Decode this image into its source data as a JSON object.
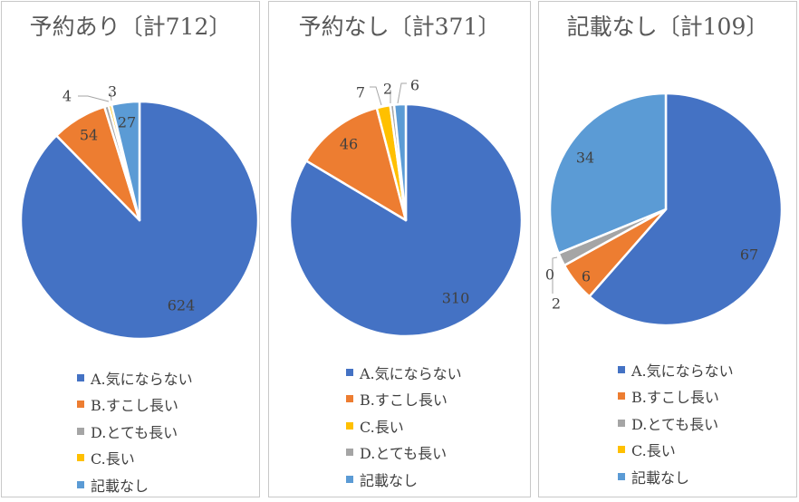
{
  "colors": {
    "A.気にならない": "#4472C4",
    "B.すこし長い": "#ED7D31",
    "C.長い": "#FFC000",
    "D.とても長い": "#A5A5A5",
    "記載なし": "#5B9BD5"
  },
  "chart_data": [
    {
      "type": "pie",
      "title": "予約あり〔計712〕",
      "slices": [
        {
          "label": "A.気にならない",
          "value": 624
        },
        {
          "label": "B.すこし長い",
          "value": 54
        },
        {
          "label": "D.とても長い",
          "value": 4
        },
        {
          "label": "C.長い",
          "value": 3
        },
        {
          "label": "記載なし",
          "value": 27
        }
      ],
      "legend": [
        "A.気にならない",
        "B.すこし長い",
        "D.とても長い",
        "C.長い",
        "記載なし"
      ],
      "legend_position": "bottom"
    },
    {
      "type": "pie",
      "title": "予約なし〔計371〕",
      "slices": [
        {
          "label": "A.気にならない",
          "value": 310
        },
        {
          "label": "B.すこし長い",
          "value": 46
        },
        {
          "label": "C.長い",
          "value": 7
        },
        {
          "label": "D.とても長い",
          "value": 2
        },
        {
          "label": "記載なし",
          "value": 6
        }
      ],
      "legend": [
        "A.気にならない",
        "B.すこし長い",
        "C.長い",
        "D.とても長い",
        "記載なし"
      ],
      "legend_position": "bottom"
    },
    {
      "type": "pie",
      "title": "記載なし〔計109〕",
      "slices": [
        {
          "label": "A.気にならない",
          "value": 67
        },
        {
          "label": "B.すこし長い",
          "value": 6
        },
        {
          "label": "D.とても長い",
          "value": 2
        },
        {
          "label": "C.長い",
          "value": 0
        },
        {
          "label": "記載なし",
          "value": 34
        }
      ],
      "legend": [
        "A.気にならない",
        "B.すこし長い",
        "D.とても長い",
        "C.長い",
        "記載なし"
      ],
      "legend_position": "bottom"
    }
  ]
}
